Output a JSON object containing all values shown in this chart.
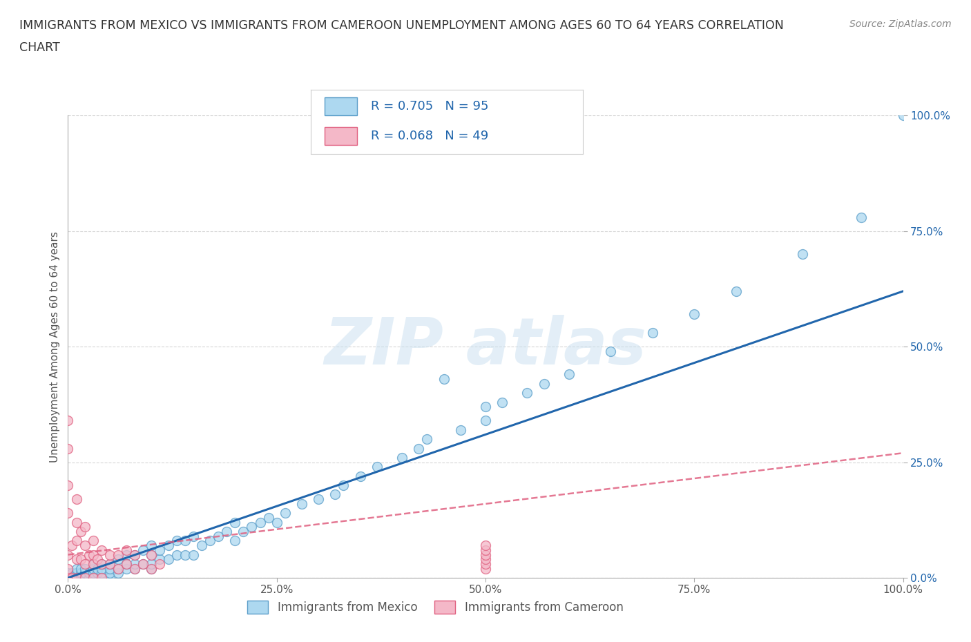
{
  "title_line1": "IMMIGRANTS FROM MEXICO VS IMMIGRANTS FROM CAMEROON UNEMPLOYMENT AMONG AGES 60 TO 64 YEARS CORRELATION",
  "title_line2": "CHART",
  "source_text": "Source: ZipAtlas.com",
  "ylabel": "Unemployment Among Ages 60 to 64 years",
  "xlim": [
    0.0,
    1.0
  ],
  "ylim": [
    0.0,
    1.0
  ],
  "xtick_labels": [
    "0.0%",
    "25.0%",
    "50.0%",
    "75.0%",
    "100.0%"
  ],
  "xtick_vals": [
    0.0,
    0.25,
    0.5,
    0.75,
    1.0
  ],
  "ytick_labels_right": [
    "100.0%",
    "75.0%",
    "50.0%",
    "25.0%",
    "0.0%"
  ],
  "ytick_vals": [
    1.0,
    0.75,
    0.5,
    0.25,
    0.0
  ],
  "mexico_color": "#add8f0",
  "cameroon_color": "#f4b8c8",
  "mexico_edge_color": "#5b9ec9",
  "cameroon_edge_color": "#e06080",
  "trend_mexico_color": "#2166ac",
  "trend_cameroon_color": "#e06080",
  "trend_mexico_intercept": 0.0,
  "trend_mexico_slope": 0.62,
  "trend_cameroon_intercept": 0.05,
  "trend_cameroon_slope": 0.22,
  "R_mexico": 0.705,
  "N_mexico": 95,
  "R_cameroon": 0.068,
  "N_cameroon": 49,
  "watermark_text": "ZIP atlas",
  "grid_color": "#cccccc",
  "background_color": "#ffffff",
  "mexico_x": [
    0.0,
    0.0,
    0.0,
    0.005,
    0.005,
    0.01,
    0.01,
    0.01,
    0.01,
    0.01,
    0.015,
    0.015,
    0.015,
    0.02,
    0.02,
    0.02,
    0.02,
    0.02,
    0.025,
    0.025,
    0.03,
    0.03,
    0.03,
    0.03,
    0.03,
    0.035,
    0.035,
    0.04,
    0.04,
    0.04,
    0.05,
    0.05,
    0.05,
    0.05,
    0.06,
    0.06,
    0.06,
    0.07,
    0.07,
    0.07,
    0.08,
    0.08,
    0.08,
    0.09,
    0.09,
    0.1,
    0.1,
    0.1,
    0.1,
    0.11,
    0.11,
    0.12,
    0.12,
    0.13,
    0.13,
    0.14,
    0.14,
    0.15,
    0.15,
    0.16,
    0.17,
    0.18,
    0.19,
    0.2,
    0.2,
    0.21,
    0.22,
    0.23,
    0.24,
    0.25,
    0.26,
    0.28,
    0.3,
    0.32,
    0.33,
    0.35,
    0.37,
    0.4,
    0.42,
    0.43,
    0.45,
    0.47,
    0.5,
    0.5,
    0.52,
    0.55,
    0.57,
    0.6,
    0.65,
    0.7,
    0.75,
    0.8,
    0.88,
    0.95,
    1.0
  ],
  "mexico_y": [
    0.0,
    0.0,
    0.01,
    0.0,
    0.01,
    0.0,
    0.0,
    0.01,
    0.01,
    0.02,
    0.0,
    0.01,
    0.02,
    0.0,
    0.0,
    0.01,
    0.01,
    0.02,
    0.0,
    0.01,
    0.0,
    0.0,
    0.01,
    0.02,
    0.03,
    0.01,
    0.02,
    0.01,
    0.02,
    0.03,
    0.0,
    0.01,
    0.02,
    0.03,
    0.01,
    0.02,
    0.04,
    0.02,
    0.03,
    0.05,
    0.02,
    0.03,
    0.05,
    0.03,
    0.06,
    0.02,
    0.03,
    0.05,
    0.07,
    0.04,
    0.06,
    0.04,
    0.07,
    0.05,
    0.08,
    0.05,
    0.08,
    0.05,
    0.09,
    0.07,
    0.08,
    0.09,
    0.1,
    0.08,
    0.12,
    0.1,
    0.11,
    0.12,
    0.13,
    0.12,
    0.14,
    0.16,
    0.17,
    0.18,
    0.2,
    0.22,
    0.24,
    0.26,
    0.28,
    0.3,
    0.43,
    0.32,
    0.34,
    0.37,
    0.38,
    0.4,
    0.42,
    0.44,
    0.49,
    0.53,
    0.57,
    0.62,
    0.7,
    0.78,
    1.0
  ],
  "cameroon_x": [
    0.0,
    0.0,
    0.0,
    0.0,
    0.0,
    0.0,
    0.0,
    0.0,
    0.0,
    0.005,
    0.005,
    0.01,
    0.01,
    0.01,
    0.01,
    0.01,
    0.015,
    0.015,
    0.02,
    0.02,
    0.02,
    0.02,
    0.025,
    0.03,
    0.03,
    0.03,
    0.03,
    0.035,
    0.04,
    0.04,
    0.04,
    0.05,
    0.05,
    0.06,
    0.06,
    0.07,
    0.07,
    0.08,
    0.08,
    0.09,
    0.1,
    0.1,
    0.11,
    0.5,
    0.5,
    0.5,
    0.5,
    0.5,
    0.5
  ],
  "cameroon_y": [
    0.0,
    0.0,
    0.0,
    0.02,
    0.05,
    0.14,
    0.2,
    0.28,
    0.34,
    0.0,
    0.07,
    0.0,
    0.04,
    0.08,
    0.12,
    0.17,
    0.04,
    0.1,
    0.0,
    0.03,
    0.07,
    0.11,
    0.05,
    0.0,
    0.03,
    0.05,
    0.08,
    0.04,
    0.0,
    0.03,
    0.06,
    0.03,
    0.05,
    0.02,
    0.05,
    0.03,
    0.06,
    0.02,
    0.05,
    0.03,
    0.02,
    0.05,
    0.03,
    0.02,
    0.03,
    0.04,
    0.05,
    0.06,
    0.07
  ]
}
